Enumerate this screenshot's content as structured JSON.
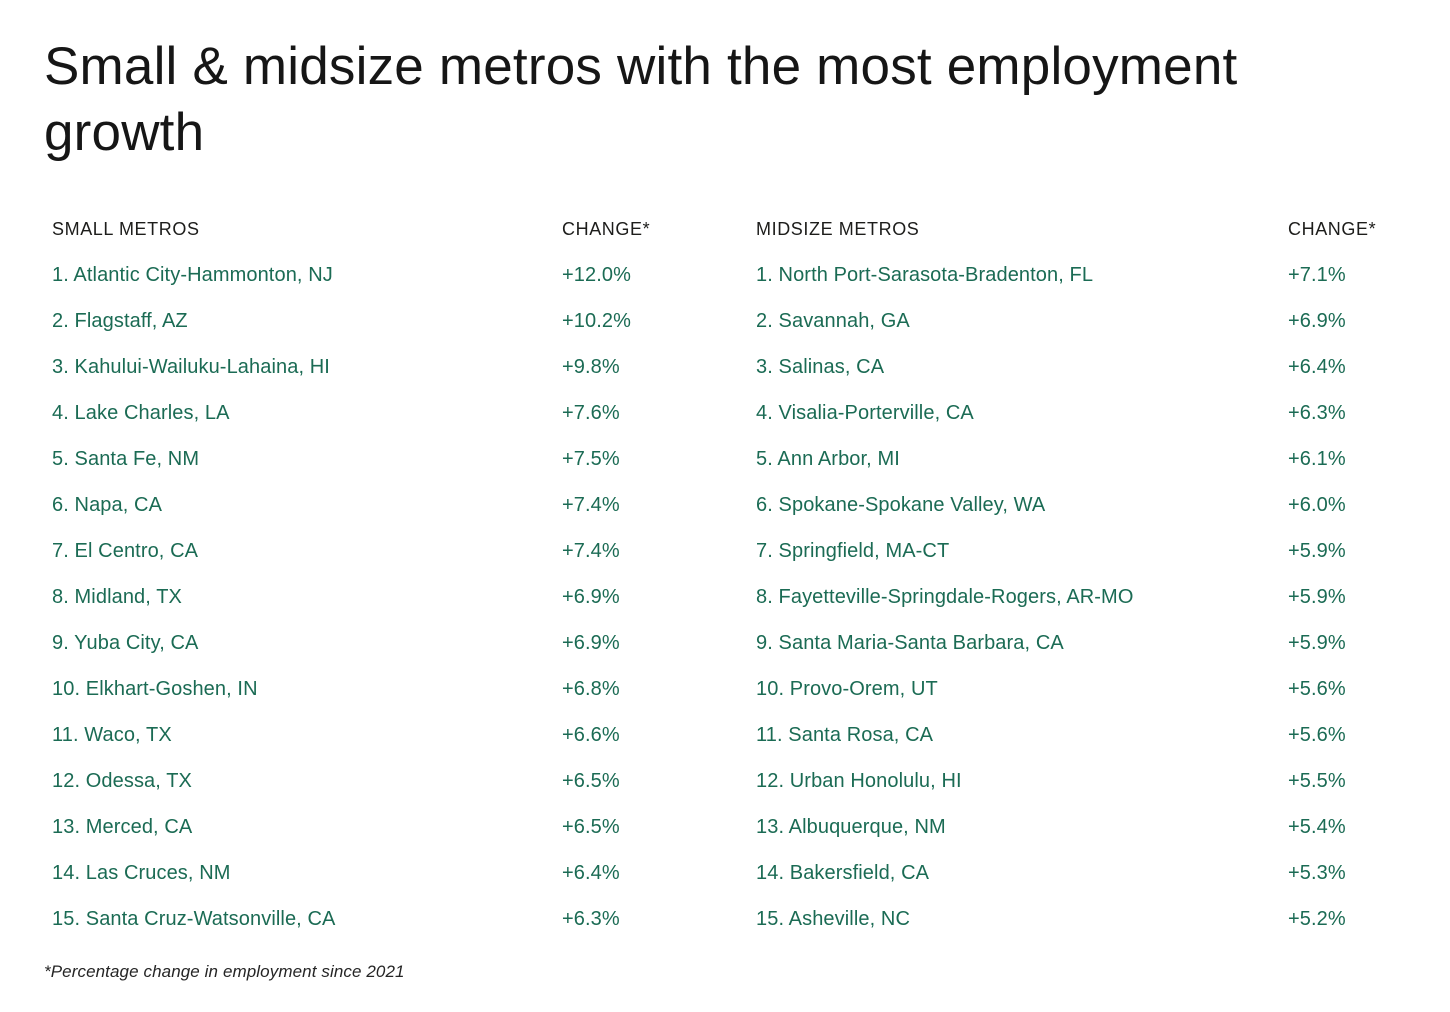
{
  "title": "Small & midsize metros with the most employment growth",
  "footnote": "*Percentage change in employment since 2021",
  "colors": {
    "row_text": "#1b6b54",
    "header_text": "#1d1d1b",
    "title_text": "#161616",
    "background": "#ffffff"
  },
  "chart_data": {
    "type": "table",
    "title": "Small & midsize metros with the most employment growth",
    "footnote": "*Percentage change in employment since 2021",
    "tables": [
      {
        "name": "Small metros",
        "columns": [
          "SMALL METROS",
          "CHANGE*"
        ],
        "rows": [
          [
            "1. Atlantic City-Hammonton, NJ",
            "+12.0%"
          ],
          [
            "2. Flagstaff, AZ",
            "+10.2%"
          ],
          [
            "3. Kahului-Wailuku-Lahaina, HI",
            "+9.8%"
          ],
          [
            "4. Lake Charles, LA",
            "+7.6%"
          ],
          [
            "5. Santa Fe, NM",
            "+7.5%"
          ],
          [
            "6. Napa, CA",
            "+7.4%"
          ],
          [
            "7. El Centro, CA",
            "+7.4%"
          ],
          [
            "8. Midland, TX",
            "+6.9%"
          ],
          [
            "9. Yuba City, CA",
            "+6.9%"
          ],
          [
            "10. Elkhart-Goshen, IN",
            "+6.8%"
          ],
          [
            "11. Waco, TX",
            "+6.6%"
          ],
          [
            "12. Odessa, TX",
            "+6.5%"
          ],
          [
            "13. Merced, CA",
            "+6.5%"
          ],
          [
            "14. Las Cruces, NM",
            "+6.4%"
          ],
          [
            "15. Santa Cruz-Watsonville, CA",
            "+6.3%"
          ]
        ]
      },
      {
        "name": "Midsize metros",
        "columns": [
          "MIDSIZE METROS",
          "CHANGE*"
        ],
        "rows": [
          [
            "1. North Port-Sarasota-Bradenton, FL",
            "+7.1%"
          ],
          [
            "2. Savannah, GA",
            "+6.9%"
          ],
          [
            "3. Salinas, CA",
            "+6.4%"
          ],
          [
            "4. Visalia-Porterville, CA",
            "+6.3%"
          ],
          [
            "5. Ann Arbor, MI",
            "+6.1%"
          ],
          [
            "6. Spokane-Spokane Valley, WA",
            "+6.0%"
          ],
          [
            "7. Springfield, MA-CT",
            "+5.9%"
          ],
          [
            "8. Fayetteville-Springdale-Rogers, AR-MO",
            "+5.9%"
          ],
          [
            "9. Santa Maria-Santa Barbara, CA",
            "+5.9%"
          ],
          [
            "10. Provo-Orem, UT",
            "+5.6%"
          ],
          [
            "11. Santa Rosa, CA",
            "+5.6%"
          ],
          [
            "12. Urban Honolulu, HI",
            "+5.5%"
          ],
          [
            "13. Albuquerque, NM",
            "+5.4%"
          ],
          [
            "14. Bakersfield, CA",
            "+5.3%"
          ],
          [
            "15. Asheville, NC",
            "+5.2%"
          ]
        ]
      }
    ]
  }
}
